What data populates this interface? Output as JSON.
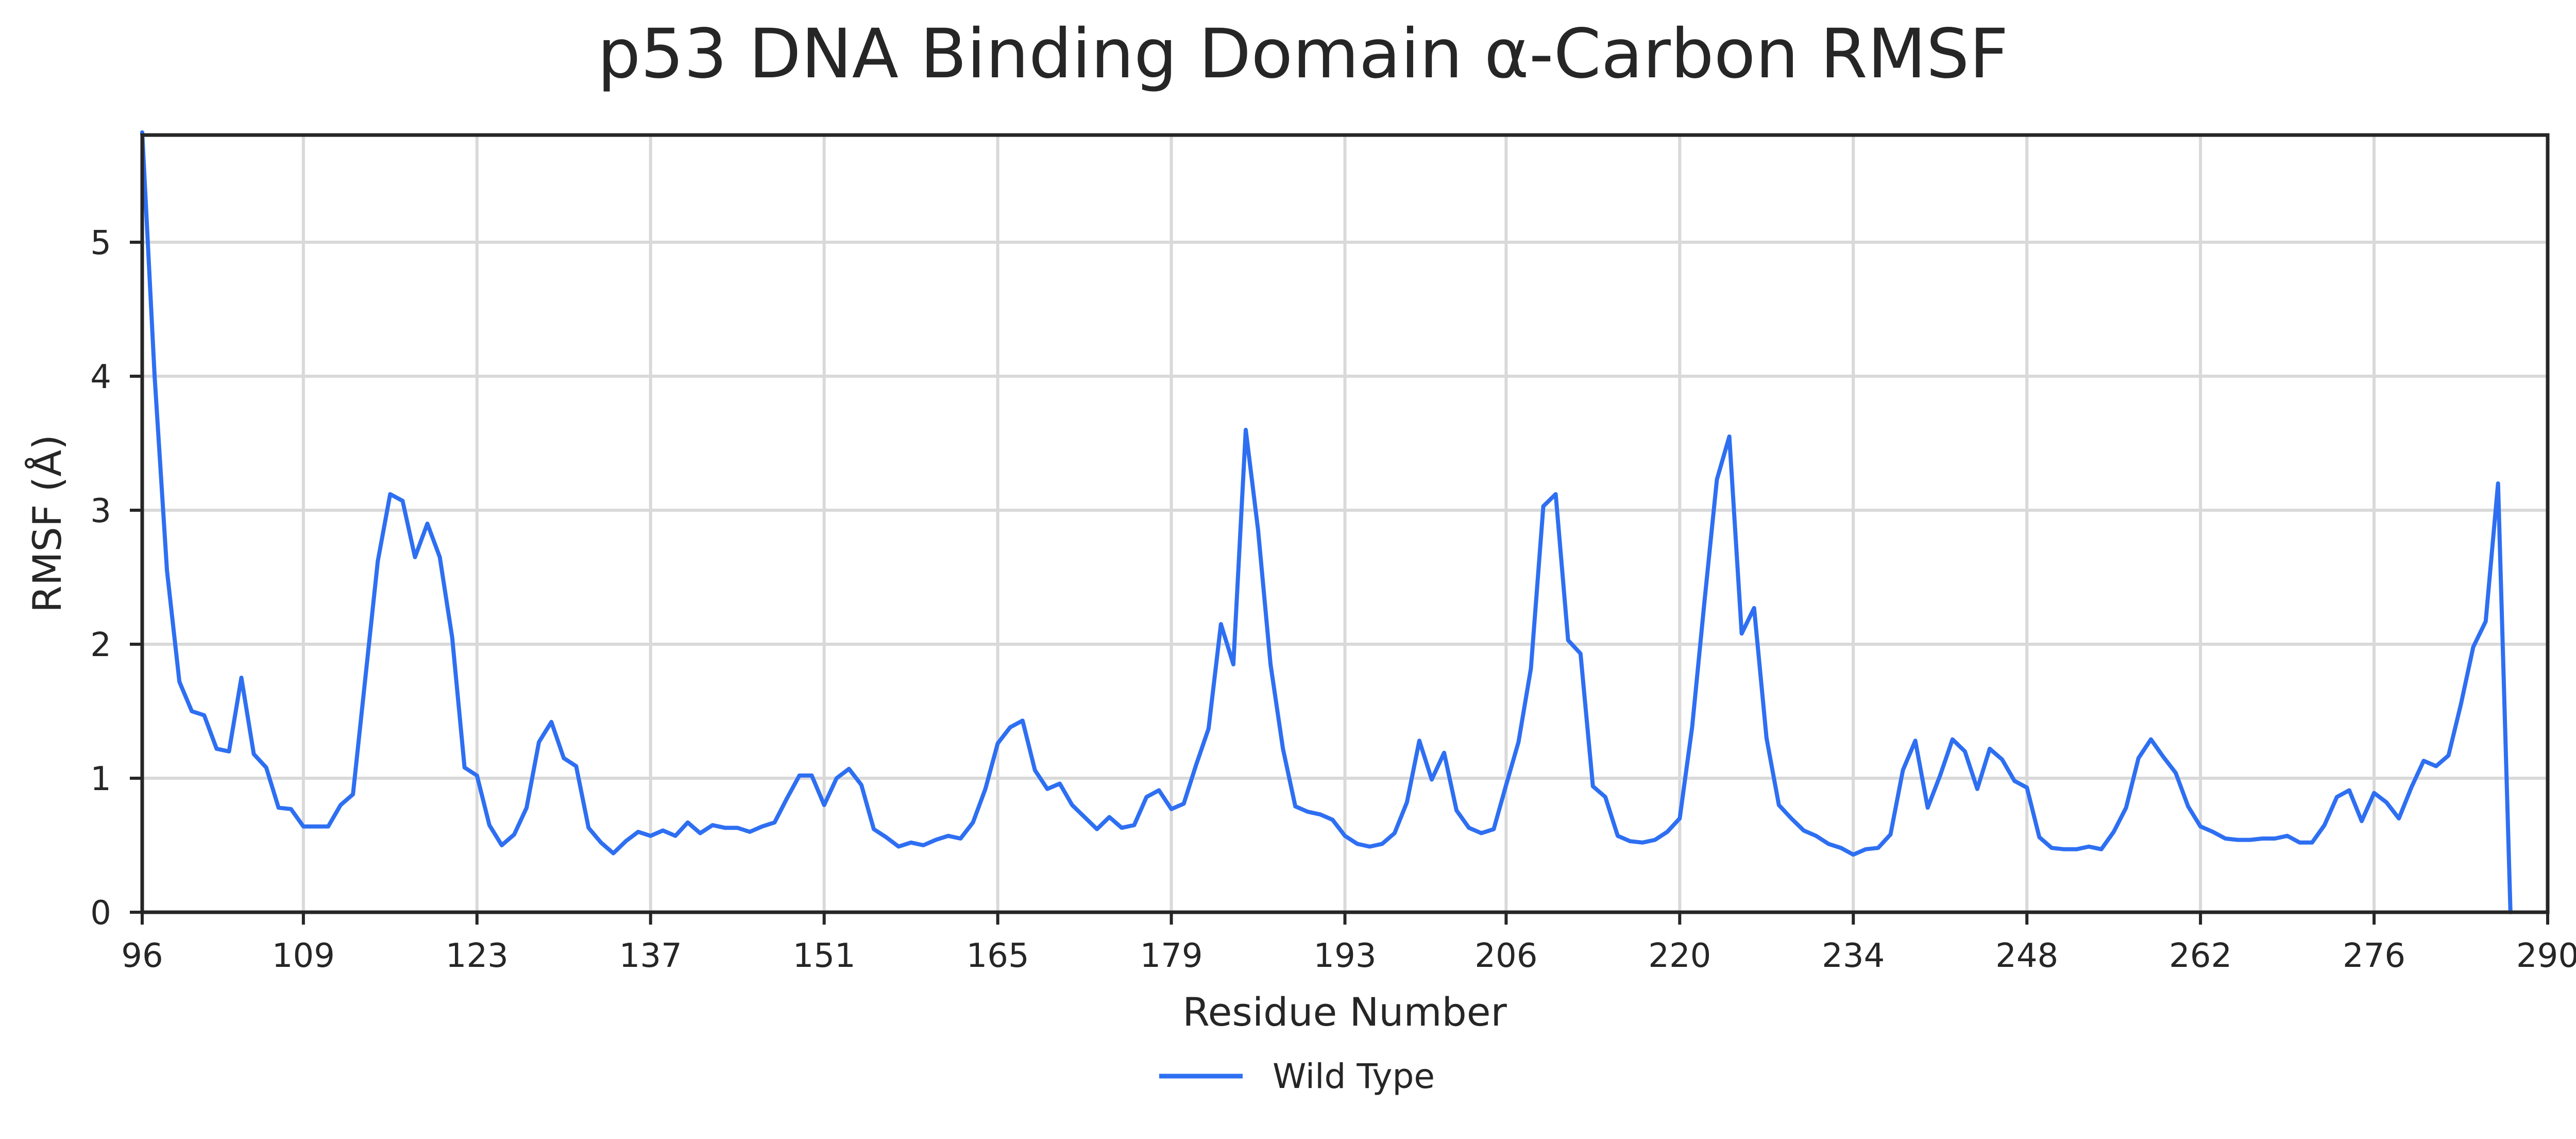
{
  "chart_data": {
    "type": "line",
    "title": "p53 DNA Binding Domain α-Carbon RMSF",
    "xlabel": "Residue Number",
    "ylabel": "RMSF (Å)",
    "xlim": [
      96,
      290
    ],
    "ylim": [
      0,
      5.8
    ],
    "xticks": [
      96,
      109,
      123,
      137,
      151,
      165,
      179,
      193,
      206,
      220,
      234,
      248,
      262,
      276,
      290
    ],
    "yticks": [
      0,
      1,
      2,
      3,
      4,
      5
    ],
    "grid": true,
    "legend_position": "bottom-center",
    "series": [
      {
        "name": "Wild Type",
        "color": "#2e6ff2",
        "x": [
          96,
          97,
          98,
          99,
          100,
          101,
          102,
          103,
          104,
          105,
          106,
          107,
          108,
          109,
          110,
          111,
          112,
          113,
          114,
          115,
          116,
          117,
          118,
          119,
          120,
          121,
          122,
          123,
          124,
          125,
          126,
          127,
          128,
          129,
          130,
          131,
          132,
          133,
          134,
          135,
          136,
          137,
          138,
          139,
          140,
          141,
          142,
          143,
          144,
          145,
          146,
          147,
          148,
          149,
          150,
          151,
          152,
          153,
          154,
          155,
          156,
          157,
          158,
          159,
          160,
          161,
          162,
          163,
          164,
          165,
          166,
          167,
          168,
          169,
          170,
          171,
          172,
          173,
          174,
          175,
          176,
          177,
          178,
          179,
          180,
          181,
          182,
          183,
          184,
          185,
          186,
          187,
          188,
          189,
          190,
          191,
          192,
          193,
          194,
          195,
          196,
          197,
          198,
          199,
          200,
          201,
          202,
          203,
          204,
          205,
          206,
          207,
          208,
          209,
          210,
          211,
          212,
          213,
          214,
          215,
          216,
          217,
          218,
          219,
          220,
          221,
          222,
          223,
          224,
          225,
          226,
          227,
          228,
          229,
          230,
          231,
          232,
          233,
          234,
          235,
          236,
          237,
          238,
          239,
          240,
          241,
          242,
          243,
          244,
          245,
          246,
          247,
          248,
          249,
          250,
          251,
          252,
          253,
          254,
          255,
          256,
          257,
          258,
          259,
          260,
          261,
          262,
          263,
          264,
          265,
          266,
          267,
          268,
          269,
          270,
          271,
          272,
          273,
          274,
          275,
          276,
          277,
          278,
          279,
          280,
          281,
          282,
          283,
          284,
          285,
          286,
          287
        ],
        "values": [
          5.82,
          4.0,
          2.55,
          1.72,
          1.5,
          1.47,
          1.22,
          1.2,
          1.75,
          1.18,
          1.08,
          0.78,
          0.77,
          0.64,
          0.64,
          0.64,
          0.8,
          0.88,
          1.75,
          2.62,
          3.12,
          3.07,
          2.65,
          2.9,
          2.65,
          2.05,
          1.08,
          1.02,
          0.65,
          0.5,
          0.58,
          0.78,
          1.27,
          1.42,
          1.15,
          1.09,
          0.63,
          0.52,
          0.44,
          0.53,
          0.6,
          0.57,
          0.61,
          0.57,
          0.67,
          0.59,
          0.65,
          0.63,
          0.63,
          0.6,
          0.64,
          0.67,
          0.85,
          1.02,
          1.02,
          0.8,
          1.0,
          1.07,
          0.95,
          0.62,
          0.56,
          0.49,
          0.52,
          0.5,
          0.54,
          0.57,
          0.55,
          0.67,
          0.92,
          1.26,
          1.38,
          1.43,
          1.06,
          0.92,
          0.96,
          0.8,
          0.71,
          0.62,
          0.71,
          0.63,
          0.65,
          0.86,
          0.91,
          0.77,
          0.81,
          1.1,
          1.37,
          2.15,
          1.85,
          3.6,
          2.85,
          1.85,
          1.22,
          0.79,
          0.75,
          0.73,
          0.69,
          0.57,
          0.51,
          0.49,
          0.51,
          0.59,
          0.82,
          1.28,
          0.99,
          1.19,
          0.76,
          0.63,
          0.59,
          0.62,
          0.95,
          1.27,
          1.82,
          3.03,
          3.12,
          2.03,
          1.93,
          0.94,
          0.86,
          0.57,
          0.53,
          0.52,
          0.54,
          0.6,
          0.7,
          1.38,
          2.32,
          3.23,
          3.55,
          2.08,
          2.27,
          1.3,
          0.8,
          0.7,
          0.61,
          0.57,
          0.51,
          0.48,
          0.43,
          0.47,
          0.48,
          0.58,
          1.06,
          1.28,
          0.78,
          1.02,
          1.29,
          1.2,
          0.92,
          1.22,
          1.14,
          0.98,
          0.93,
          0.56,
          0.48,
          0.47,
          0.47,
          0.49,
          0.47,
          0.6,
          0.78,
          1.15,
          1.29,
          1.16,
          1.04,
          0.79,
          0.64,
          0.6,
          0.55,
          0.54,
          0.54,
          0.55,
          0.55,
          0.57,
          0.52,
          0.52,
          0.65,
          0.86,
          0.91,
          0.68,
          0.89,
          0.82,
          0.7,
          0.93,
          1.13,
          1.09,
          1.17,
          1.55,
          1.98,
          2.17,
          3.2,
          0.0
        ]
      }
    ]
  }
}
